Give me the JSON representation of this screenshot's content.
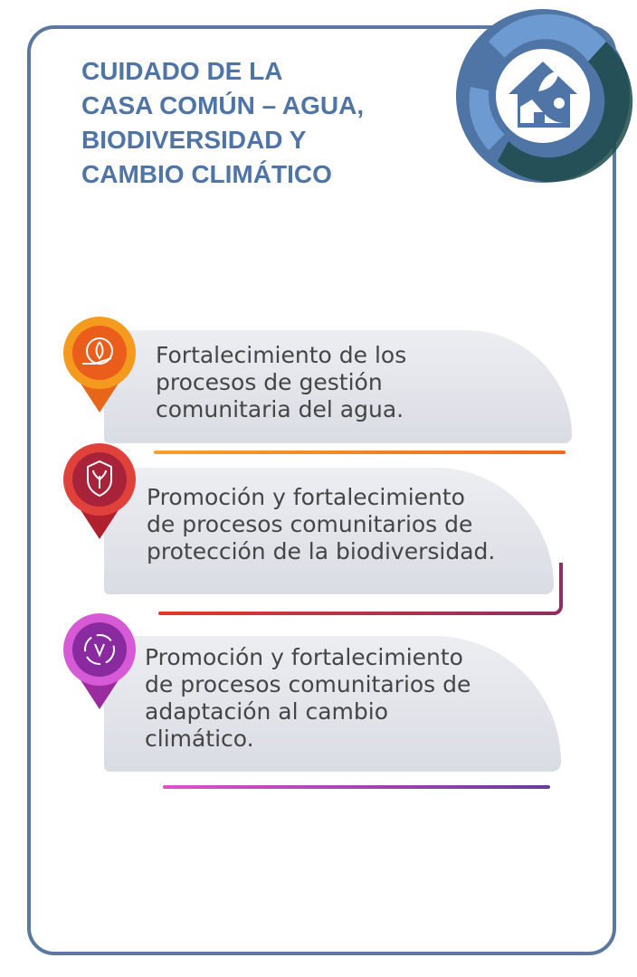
{
  "title": {
    "lines": [
      "CUIDADO DE LA",
      "CASA COMÚN – AGUA,",
      "BIODIVERSIDAD Y",
      "CAMBIO CLIMÁTICO"
    ]
  },
  "badge": {
    "icon": "house-leaf-sun-icon",
    "colors": [
      "#4f74a6",
      "#6d9bd1",
      "#1f4a4a"
    ]
  },
  "items": [
    {
      "icon": "hand-gear-water-icon",
      "color": "#f07a1c",
      "lines": [
        "Fortalecimiento de los",
        "procesos de gestión",
        "comunitaria del agua."
      ]
    },
    {
      "icon": "shield-plant-icon",
      "color": "#c0283a",
      "lines": [
        "Promoción y fortalecimiento",
        "de procesos comunitarios de",
        "protección de la biodiversidad."
      ]
    },
    {
      "icon": "climate-cycle-icon",
      "color": "#b03ab8",
      "lines": [
        "Promoción y fortalecimiento",
        "de procesos comunitarios de",
        "adaptación al cambio",
        "climático."
      ]
    }
  ]
}
